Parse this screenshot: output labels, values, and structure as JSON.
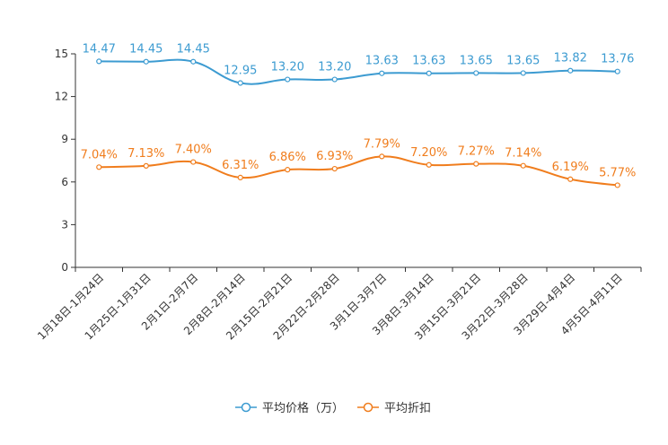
{
  "chart_data": {
    "type": "line",
    "title": "",
    "xlabel": "",
    "ylabel": "",
    "ylim": [
      0,
      15
    ],
    "yticks": [
      0,
      3,
      6,
      9,
      12,
      15
    ],
    "categories": [
      "1月18日-1月24日",
      "1月25日-1月31日",
      "2月1日-2月7日",
      "2月8日-2月14日",
      "2月15日-2月21日",
      "2月22日-2月28日",
      "3月1日-3月7日",
      "3月8日-3月14日",
      "3月15日-3月21日",
      "3月22日-3月28日",
      "3月29日-4月4日",
      "4月5日-4月11日"
    ],
    "series": [
      {
        "name": "平均价格（万）",
        "color": "#3c9bd1",
        "values": [
          14.47,
          14.45,
          14.45,
          12.95,
          13.2,
          13.2,
          13.63,
          13.63,
          13.65,
          13.65,
          13.82,
          13.76
        ],
        "labels": [
          "14.47",
          "14.45",
          "14.45",
          "12.95",
          "13.20",
          "13.20",
          "13.63",
          "13.63",
          "13.65",
          "13.65",
          "13.82",
          "13.76"
        ]
      },
      {
        "name": "平均折扣",
        "color": "#f07d1d",
        "values": [
          7.04,
          7.13,
          7.4,
          6.31,
          6.86,
          6.93,
          7.79,
          7.2,
          7.27,
          7.14,
          6.19,
          5.77
        ],
        "labels": [
          "7.04%",
          "7.13%",
          "7.40%",
          "6.31%",
          "6.86%",
          "6.93%",
          "7.79%",
          "7.20%",
          "7.27%",
          "7.14%",
          "6.19%",
          "5.77%"
        ]
      }
    ],
    "legend": "bottom-center"
  }
}
